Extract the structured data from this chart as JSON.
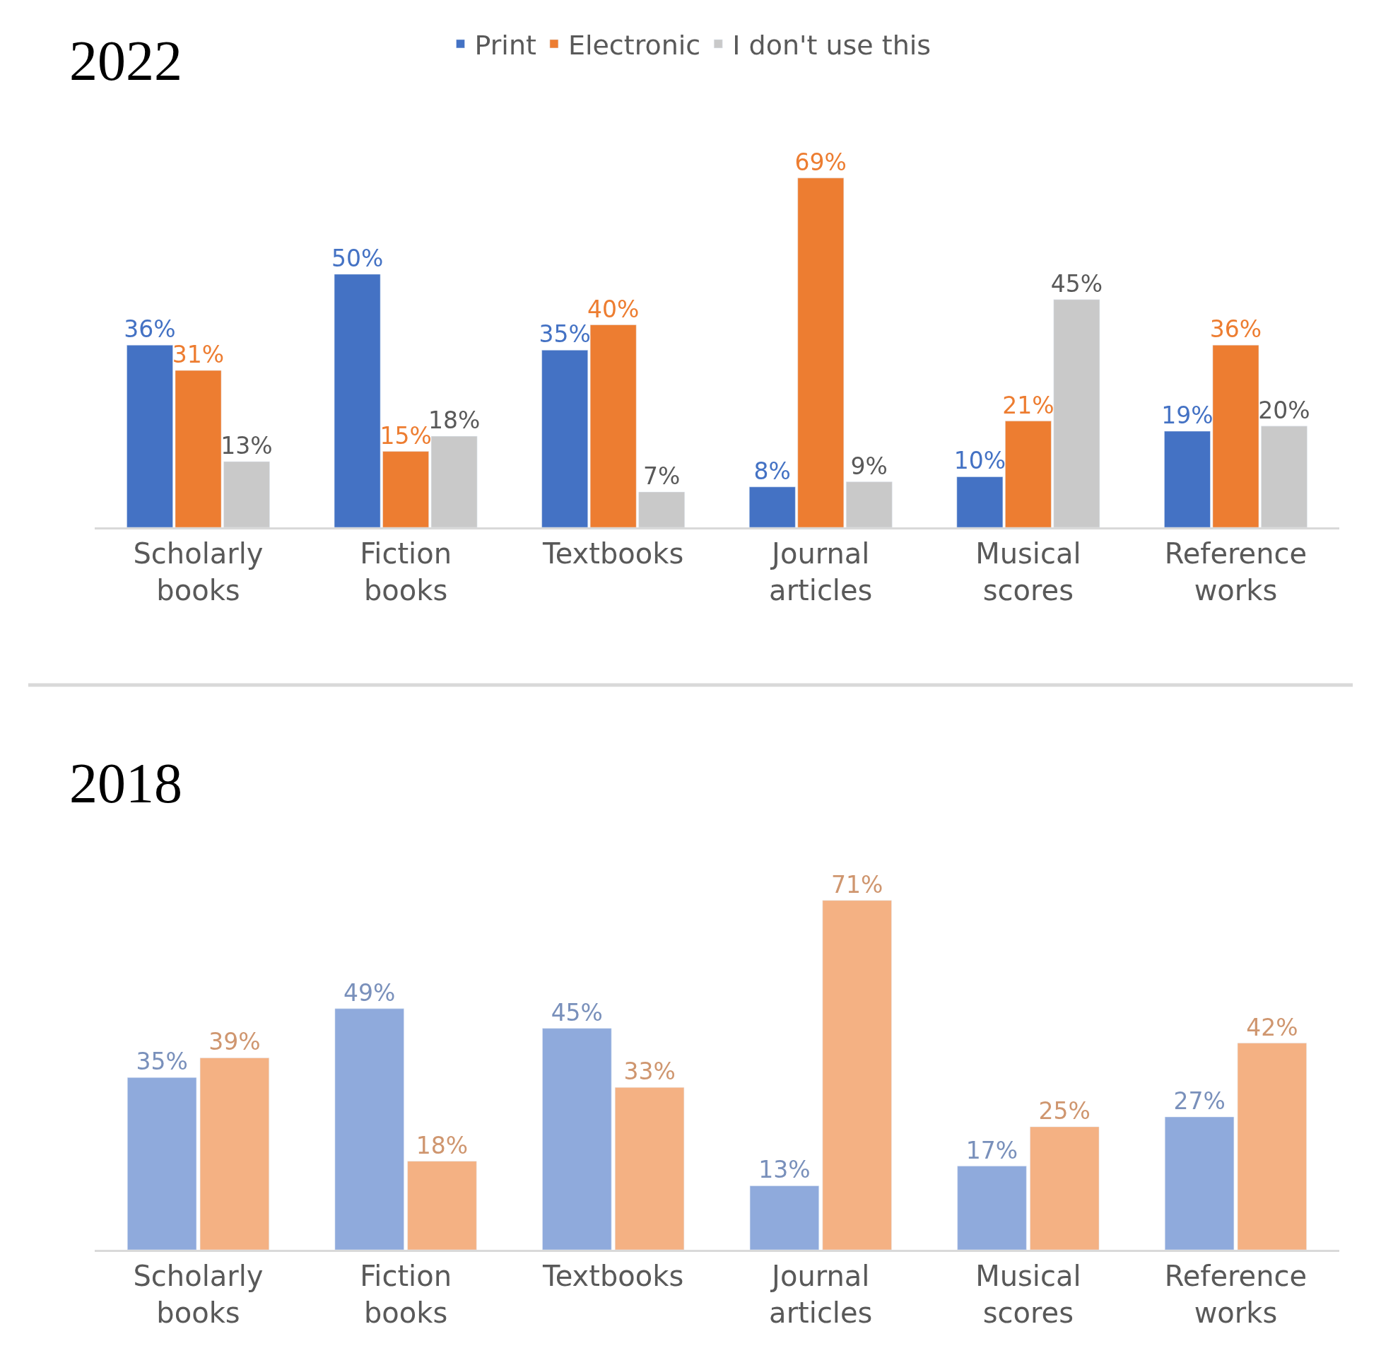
{
  "chart_data": [
    {
      "type": "bar",
      "title": "2022",
      "categories": [
        "Scholarly books",
        "Fiction books",
        "Textbooks",
        "Journal articles",
        "Musical scores",
        "Reference works"
      ],
      "series": [
        {
          "name": "Print",
          "color": "#4472c4",
          "values": [
            36,
            50,
            35,
            8,
            10,
            19
          ],
          "value_labels": [
            "36%",
            "50%",
            "35%",
            "8%",
            "10%",
            "19%"
          ]
        },
        {
          "name": "Electronic",
          "color": "#ed7d31",
          "values": [
            31,
            15,
            40,
            69,
            21,
            36
          ],
          "value_labels": [
            "31%",
            "15%",
            "40%",
            "69%",
            "21%",
            "36%"
          ]
        },
        {
          "name": "I don't use this",
          "color": "#c9c9c9",
          "values": [
            13,
            18,
            7,
            9,
            45,
            20
          ],
          "value_labels": [
            "13%",
            "18%",
            "7%",
            "9%",
            "45%",
            "20%"
          ]
        }
      ],
      "legend": "top"
    },
    {
      "type": "bar",
      "title": "2018",
      "categories": [
        "Scholarly books",
        "Fiction books",
        "Textbooks",
        "Journal articles",
        "Musical scores",
        "Reference works"
      ],
      "series": [
        {
          "color": "#8faadc",
          "values": [
            35,
            49,
            45,
            13,
            17,
            27
          ],
          "value_labels": [
            "35%",
            "49%",
            "45%",
            "13%",
            "17%",
            "27%"
          ]
        },
        {
          "color": "#f4b183",
          "values": [
            39,
            18,
            33,
            71,
            25,
            42
          ],
          "value_labels": [
            "39%",
            "18%",
            "33%",
            "71%",
            "25%",
            "42%"
          ]
        }
      ],
      "legend": false
    }
  ]
}
